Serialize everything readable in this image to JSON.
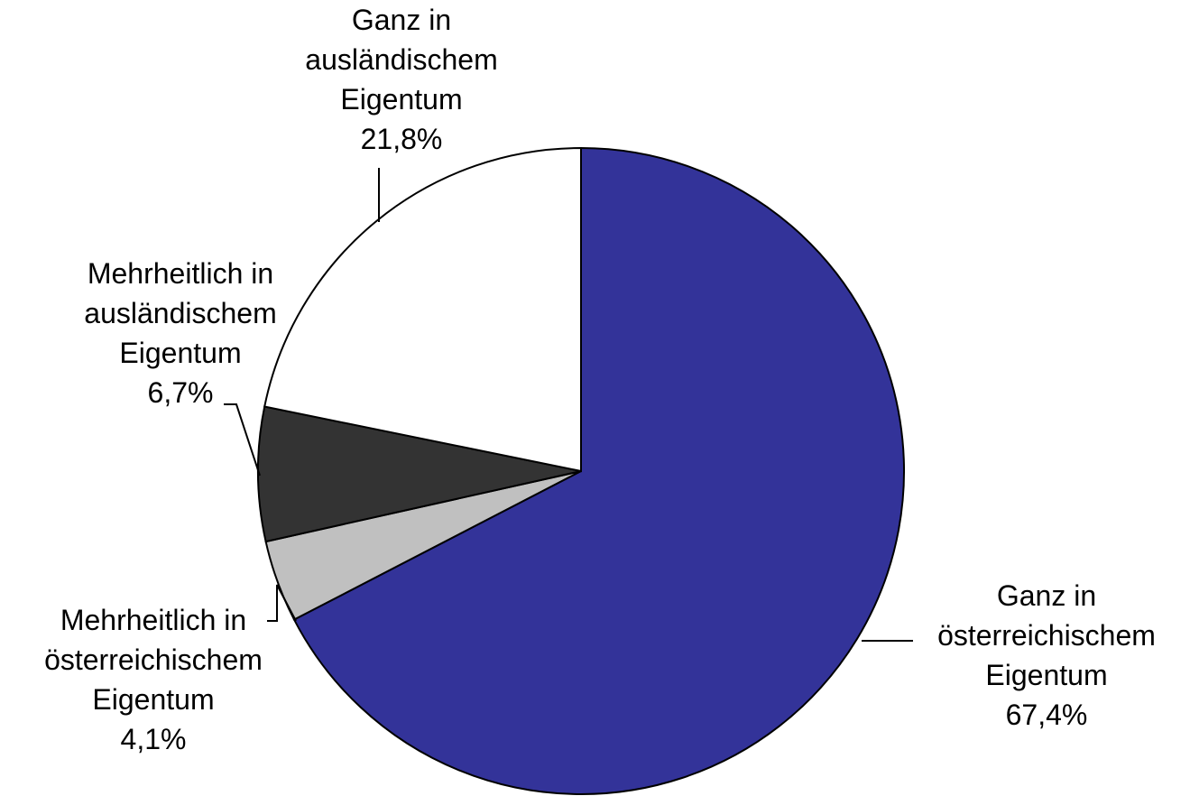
{
  "chart_data": {
    "type": "pie",
    "categories": [
      "Ganz in österreichischem Eigentum",
      "Mehrheitlich in österreichischem Eigentum",
      "Mehrheitlich in ausländischem Eigentum",
      "Ganz in ausländischem Eigentum"
    ],
    "values": [
      67.4,
      4.1,
      6.7,
      21.8
    ],
    "value_labels": [
      "67,4%",
      "4,1%",
      "6,7%",
      "21,8%"
    ],
    "colors": [
      "#333399",
      "#c0c0c0",
      "#333333",
      "#ffffff"
    ]
  }
}
